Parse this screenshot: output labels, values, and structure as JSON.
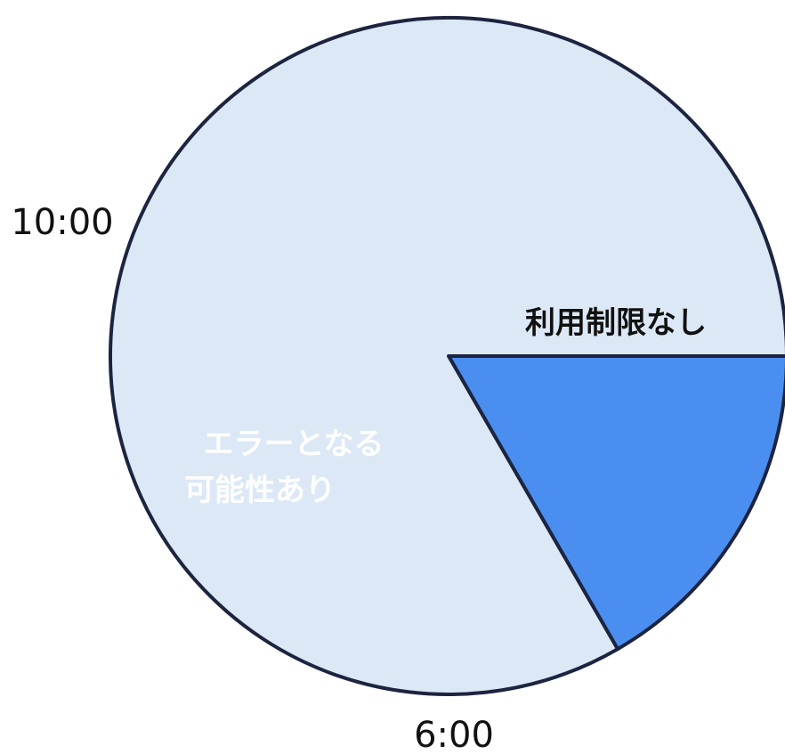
{
  "chart_data": {
    "type": "pie",
    "unit": "hours",
    "clock_hours": 24,
    "slices": [
      {
        "start": "6:00",
        "end": "10:00",
        "start_hour": 6,
        "end_hour": 10,
        "label_lines": [
          "エラーとなる",
          "可能性あり"
        ],
        "color": "#4a8ef0",
        "text_color": "#ffffff"
      },
      {
        "start": "10:00",
        "end": "6:00",
        "start_hour": 10,
        "end_hour": 30,
        "label_lines": [
          "利用制限なし"
        ],
        "color": "#dce8f5",
        "text_color": "#111111"
      }
    ],
    "boundary_labels": [
      {
        "text": "10:00",
        "hour": 10
      },
      {
        "text": "6:00",
        "hour": 6
      }
    ],
    "stroke_color": "#1c2440"
  }
}
